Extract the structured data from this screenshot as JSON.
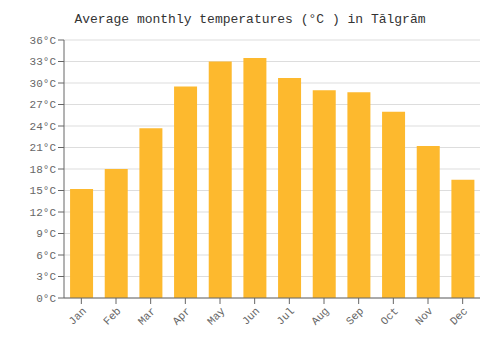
{
  "chart_data": {
    "type": "bar",
    "title": "Average monthly temperatures (°C ) in Tālgrām",
    "categories": [
      "Jan",
      "Feb",
      "Mar",
      "Apr",
      "May",
      "Jun",
      "Jul",
      "Aug",
      "Sep",
      "Oct",
      "Nov",
      "Dec"
    ],
    "values": [
      15.2,
      18.0,
      23.7,
      29.5,
      33.0,
      33.5,
      30.7,
      29.0,
      28.7,
      26.0,
      21.2,
      16.5
    ],
    "color": "#FDB92E",
    "ylim": [
      0,
      36
    ],
    "yticks": [
      {
        "value": 0,
        "label": "0°C"
      },
      {
        "value": 3,
        "label": "3°C"
      },
      {
        "value": 6,
        "label": "6°C"
      },
      {
        "value": 9,
        "label": "9°C"
      },
      {
        "value": 12,
        "label": "12°C"
      },
      {
        "value": 15,
        "label": "15°C"
      },
      {
        "value": 18,
        "label": "18°C"
      },
      {
        "value": 21,
        "label": "21°C"
      },
      {
        "value": 24,
        "label": "24°C"
      },
      {
        "value": 27,
        "label": "27°C"
      },
      {
        "value": 30,
        "label": "30°C"
      },
      {
        "value": 33,
        "label": "33°C"
      },
      {
        "value": 36,
        "label": "36°C"
      }
    ],
    "grid": true
  }
}
